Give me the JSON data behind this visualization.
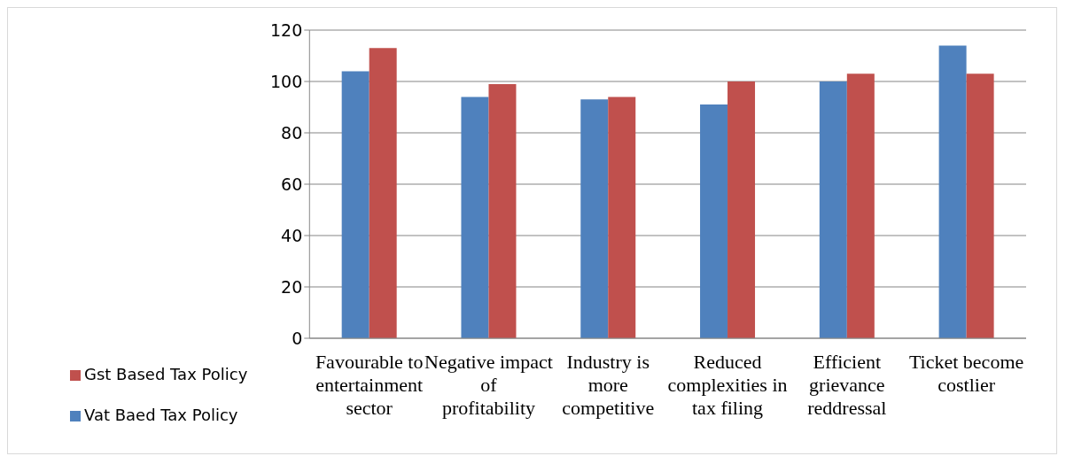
{
  "chart_data": {
    "type": "bar",
    "categories": [
      "Favourable to entertainment sector",
      "Negative impact of profitability",
      "Industry is more competitive",
      "Reduced complexities in tax filing",
      "Efficient grievance reddressal",
      "Ticket become costlier"
    ],
    "series": [
      {
        "name": "Vat Baed Tax Policy",
        "color": "#4f81bd",
        "values": [
          104,
          94,
          93,
          91,
          100,
          114
        ]
      },
      {
        "name": "Gst Based Tax Policy",
        "color": "#c0504d",
        "values": [
          113,
          99,
          94,
          100,
          103,
          103
        ]
      }
    ],
    "ylim": [
      0,
      120
    ],
    "yticks": [
      0,
      20,
      40,
      60,
      80,
      100,
      120
    ],
    "grid": "y",
    "legend": "bottom left"
  }
}
